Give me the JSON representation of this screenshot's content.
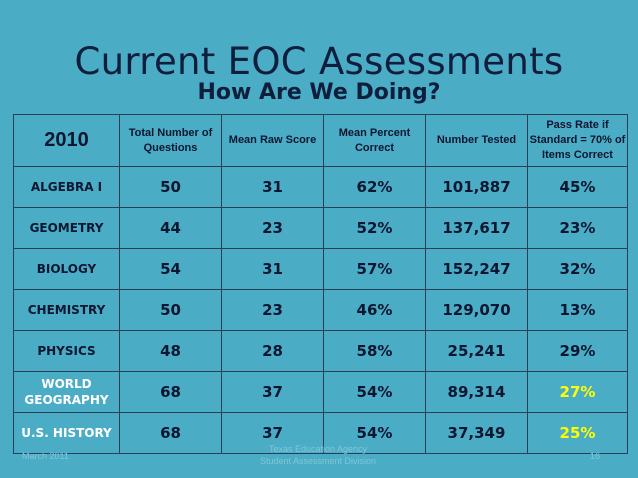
{
  "slide": {
    "title": "Current EOC Assessments",
    "subtitle": "How Are We Doing?"
  },
  "table": {
    "year": "2010",
    "headers": [
      "Total Number of Questions",
      "Mean Raw Score",
      "Mean Percent Correct",
      "Number Tested",
      "Pass Rate if Standard = 70% of Items Correct"
    ],
    "rows": [
      {
        "subject": "ALGEBRA  I",
        "questions": "50",
        "mean_raw": "31",
        "mean_percent": "62%",
        "tested": "101,887",
        "pass_rate": "45%"
      },
      {
        "subject": "GEOMETRY",
        "questions": "44",
        "mean_raw": "23",
        "mean_percent": "52%",
        "tested": "137,617",
        "pass_rate": "23%"
      },
      {
        "subject": "BIOLOGY",
        "questions": "54",
        "mean_raw": "31",
        "mean_percent": "57%",
        "tested": "152,247",
        "pass_rate": "32%"
      },
      {
        "subject": "CHEMISTRY",
        "questions": "50",
        "mean_raw": "23",
        "mean_percent": "46%",
        "tested": "129,070",
        "pass_rate": "13%"
      },
      {
        "subject": "PHYSICS",
        "questions": "48",
        "mean_raw": "28",
        "mean_percent": "58%",
        "tested": "25,241",
        "pass_rate": "29%"
      },
      {
        "subject": "WORLD GEOGRAPHY",
        "questions": "68",
        "mean_raw": "37",
        "mean_percent": "54%",
        "tested": "89,314",
        "pass_rate": "27%"
      },
      {
        "subject": "U.S. HISTORY",
        "questions": "68",
        "mean_raw": "37",
        "mean_percent": "54%",
        "tested": "37,349",
        "pass_rate": "25%"
      }
    ]
  },
  "footer": {
    "date": "March 2011",
    "org_line1": "Texas Education Agency",
    "org_line2": "Student Assessment Division",
    "page": "16"
  },
  "colors": {
    "background": "#4BACC6",
    "highlight": "#FFFF00",
    "text": "#0B1630"
  }
}
